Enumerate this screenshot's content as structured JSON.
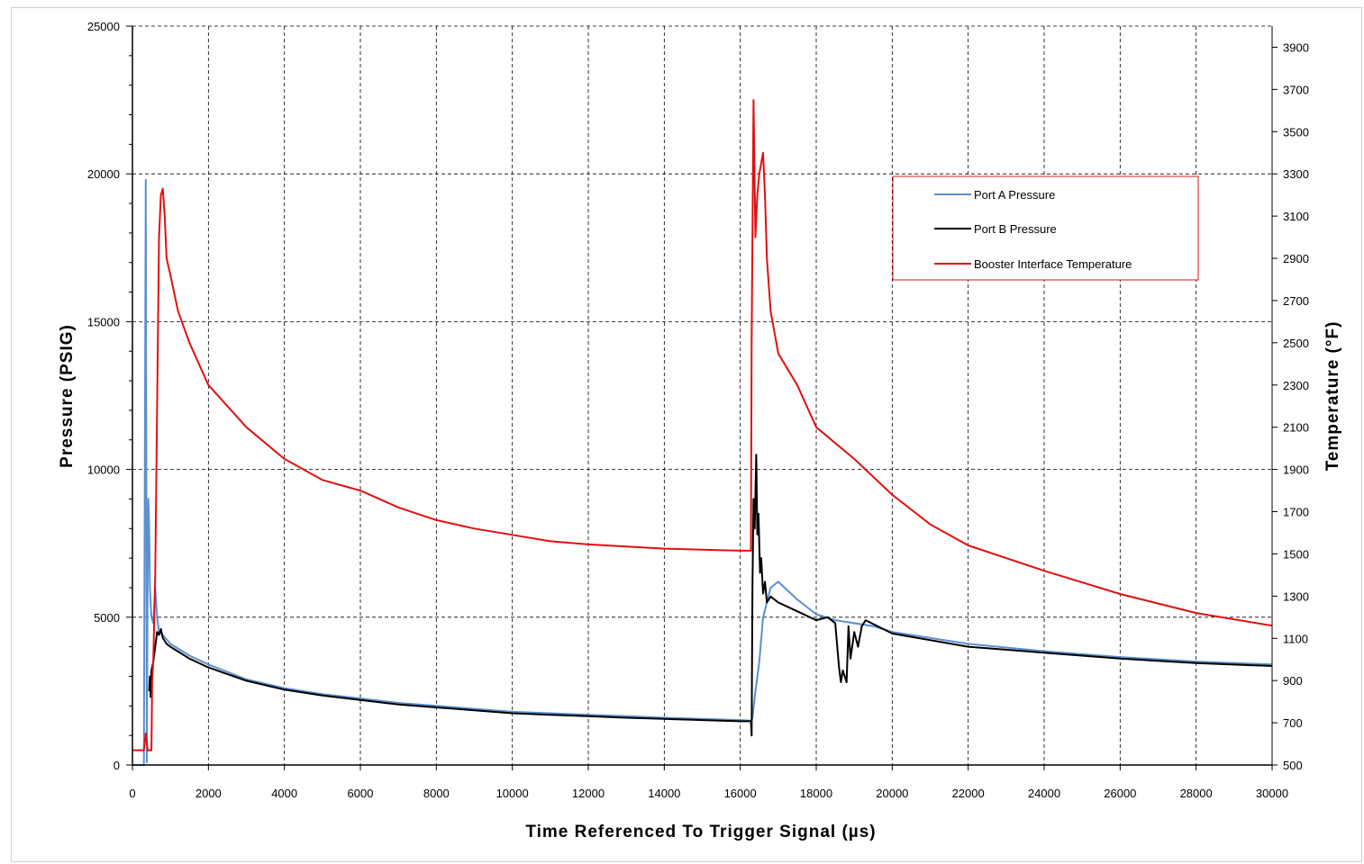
{
  "chart_data": {
    "type": "line",
    "xlabel": "Time Referenced To Trigger Signal (µs)",
    "ylabel": "Pressure (PSIG)",
    "y2label": "Temperature (°F)",
    "xlim": [
      0,
      30000
    ],
    "ylim": [
      0,
      25000
    ],
    "y2lim": [
      500,
      4000
    ],
    "x_ticks": [
      0,
      2000,
      4000,
      6000,
      8000,
      10000,
      12000,
      14000,
      16000,
      18000,
      20000,
      22000,
      24000,
      26000,
      28000,
      30000
    ],
    "y_ticks": [
      0,
      5000,
      10000,
      15000,
      20000,
      25000
    ],
    "y2_ticks": [
      500,
      700,
      900,
      1100,
      1300,
      1500,
      1700,
      1900,
      2100,
      2300,
      2500,
      2700,
      2900,
      3100,
      3300,
      3500,
      3700,
      3900
    ],
    "grid": true,
    "legend_position": "top-right",
    "series": [
      {
        "name": "Port A Pressure",
        "axis": "left",
        "color": "#5b8fd0",
        "x": [
          0,
          300,
          350,
          380,
          400,
          420,
          440,
          460,
          480,
          500,
          550,
          600,
          650,
          700,
          800,
          1000,
          1500,
          2000,
          3000,
          4000,
          5000,
          6000,
          7000,
          8000,
          9000,
          10000,
          11000,
          12000,
          13000,
          14000,
          15000,
          16000,
          16300,
          16320,
          16400,
          16500,
          16600,
          16800,
          17000,
          17500,
          18000,
          18500,
          19000,
          19500,
          20000,
          22000,
          24000,
          26000,
          28000,
          30000
        ],
        "y": [
          0,
          0,
          19800,
          100,
          6500,
          9000,
          8000,
          6000,
          5500,
          5000,
          4800,
          6000,
          5000,
          4500,
          4400,
          4100,
          3700,
          3400,
          2900,
          2600,
          2400,
          2250,
          2100,
          2000,
          1900,
          1800,
          1750,
          1700,
          1650,
          1600,
          1560,
          1520,
          1500,
          1600,
          2500,
          3500,
          5000,
          6000,
          6200,
          5600,
          5100,
          4900,
          4800,
          4700,
          4500,
          4100,
          3850,
          3650,
          3500,
          3400
        ]
      },
      {
        "name": "Port B Pressure",
        "axis": "left",
        "color": "#000000",
        "x": [
          0,
          420,
          440,
          460,
          480,
          500,
          550,
          600,
          650,
          700,
          750,
          800,
          900,
          1000,
          1500,
          2000,
          3000,
          4000,
          5000,
          6000,
          7000,
          8000,
          9000,
          10000,
          11000,
          12000,
          13000,
          14000,
          15000,
          16000,
          16280,
          16300,
          16320,
          16350,
          16380,
          16420,
          16450,
          16480,
          16520,
          16550,
          16600,
          16650,
          16700,
          16800,
          17000,
          17500,
          18000,
          18300,
          18500,
          18600,
          18650,
          18700,
          18800,
          18850,
          18900,
          19000,
          19100,
          19200,
          19300,
          20000,
          22000,
          24000,
          26000,
          28000,
          30000
        ],
        "y": [
          null,
          null,
          2500,
          3000,
          2300,
          3200,
          3500,
          4000,
          4500,
          4400,
          4600,
          4300,
          4100,
          4000,
          3600,
          3300,
          2850,
          2550,
          2350,
          2200,
          2050,
          1950,
          1850,
          1750,
          1700,
          1650,
          1600,
          1560,
          1520,
          1480,
          1480,
          1000,
          6000,
          9000,
          8000,
          10500,
          7800,
          8500,
          6500,
          7000,
          5800,
          6200,
          5500,
          5700,
          5500,
          5200,
          4900,
          5000,
          4800,
          3300,
          2800,
          3200,
          2800,
          4700,
          3600,
          4500,
          4000,
          4700,
          4900,
          4450,
          4000,
          3800,
          3600,
          3450,
          3350
        ]
      },
      {
        "name": "Booster Interface Temperature",
        "axis": "right",
        "color": "#e01010",
        "x": [
          0,
          300,
          350,
          400,
          450,
          500,
          520,
          550,
          600,
          650,
          700,
          750,
          800,
          850,
          900,
          1000,
          1200,
          1500,
          2000,
          3000,
          4000,
          5000,
          6000,
          7000,
          8000,
          9000,
          10000,
          11000,
          12000,
          13000,
          14000,
          15000,
          16000,
          16200,
          16250,
          16280,
          16300,
          16350,
          16400,
          16450,
          16500,
          16550,
          16600,
          16650,
          16700,
          16800,
          17000,
          17500,
          18000,
          19000,
          20000,
          21000,
          22000,
          24000,
          26000,
          28000,
          30000
        ],
        "y": [
          570,
          570,
          650,
          570,
          570,
          570,
          900,
          1000,
          1400,
          2200,
          3000,
          3200,
          3230,
          3100,
          2900,
          2820,
          2650,
          2500,
          2300,
          2100,
          1950,
          1850,
          1800,
          1720,
          1660,
          1620,
          1590,
          1560,
          1545,
          1535,
          1525,
          1520,
          1515,
          1515,
          1515,
          1515,
          2500,
          3650,
          3000,
          3200,
          3300,
          3350,
          3400,
          3200,
          2900,
          2650,
          2450,
          2300,
          2100,
          1950,
          1780,
          1640,
          1540,
          1420,
          1310,
          1220,
          1160
        ]
      }
    ]
  }
}
